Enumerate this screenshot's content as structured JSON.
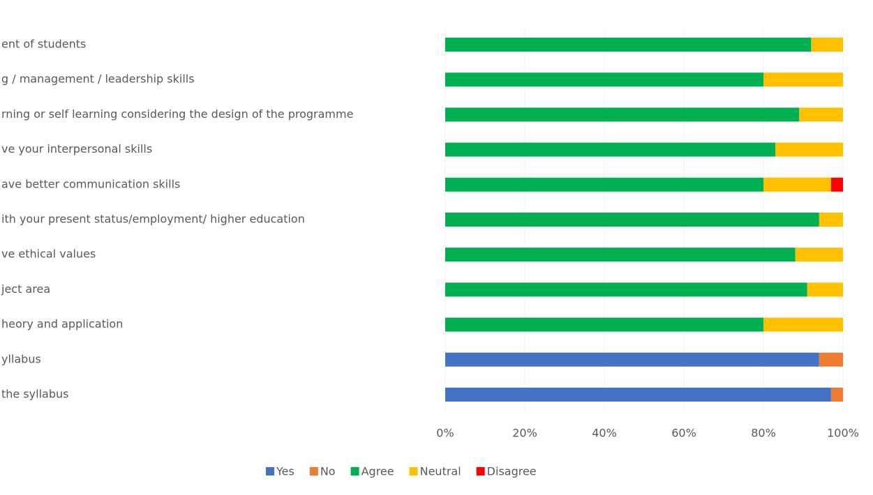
{
  "chart_data": {
    "type": "stacked-bar-horizontal",
    "categories": [
      "ent of students",
      "g / management / leadership skills",
      "rning or self learning considering the design of the programme",
      "ve your interpersonal skills",
      "ave better communication skills",
      "ith your present status/employment/ higher education",
      "ve ethical values",
      "ject area",
      "heory and application",
      "yllabus",
      "the syllabus"
    ],
    "series": [
      {
        "name": "Yes",
        "color": "#4472c4",
        "values": [
          null,
          null,
          null,
          null,
          null,
          null,
          null,
          null,
          null,
          94,
          97
        ]
      },
      {
        "name": "No",
        "color": "#ed7d31",
        "values": [
          null,
          null,
          null,
          null,
          null,
          null,
          null,
          null,
          null,
          6,
          3
        ]
      },
      {
        "name": "Agree",
        "color": "#00b050",
        "values": [
          92,
          80,
          89,
          83,
          80,
          94,
          88,
          91,
          80,
          null,
          null
        ]
      },
      {
        "name": "Neutral",
        "color": "#ffc000",
        "values": [
          8,
          20,
          11,
          17,
          17,
          6,
          12,
          9,
          20,
          null,
          null
        ]
      },
      {
        "name": "Disagree",
        "color": "#ff0000",
        "values": [
          null,
          null,
          null,
          null,
          3,
          null,
          null,
          null,
          null,
          null,
          null
        ]
      }
    ],
    "xlim": [
      0,
      100
    ],
    "xticks": [
      {
        "value": 0,
        "label": "0%"
      },
      {
        "value": 20,
        "label": "20%"
      },
      {
        "value": 40,
        "label": "40%"
      },
      {
        "value": 60,
        "label": "60%"
      },
      {
        "value": 80,
        "label": "80%"
      },
      {
        "value": 100,
        "label": "100%"
      }
    ],
    "grid": true,
    "legend": "bottom"
  }
}
